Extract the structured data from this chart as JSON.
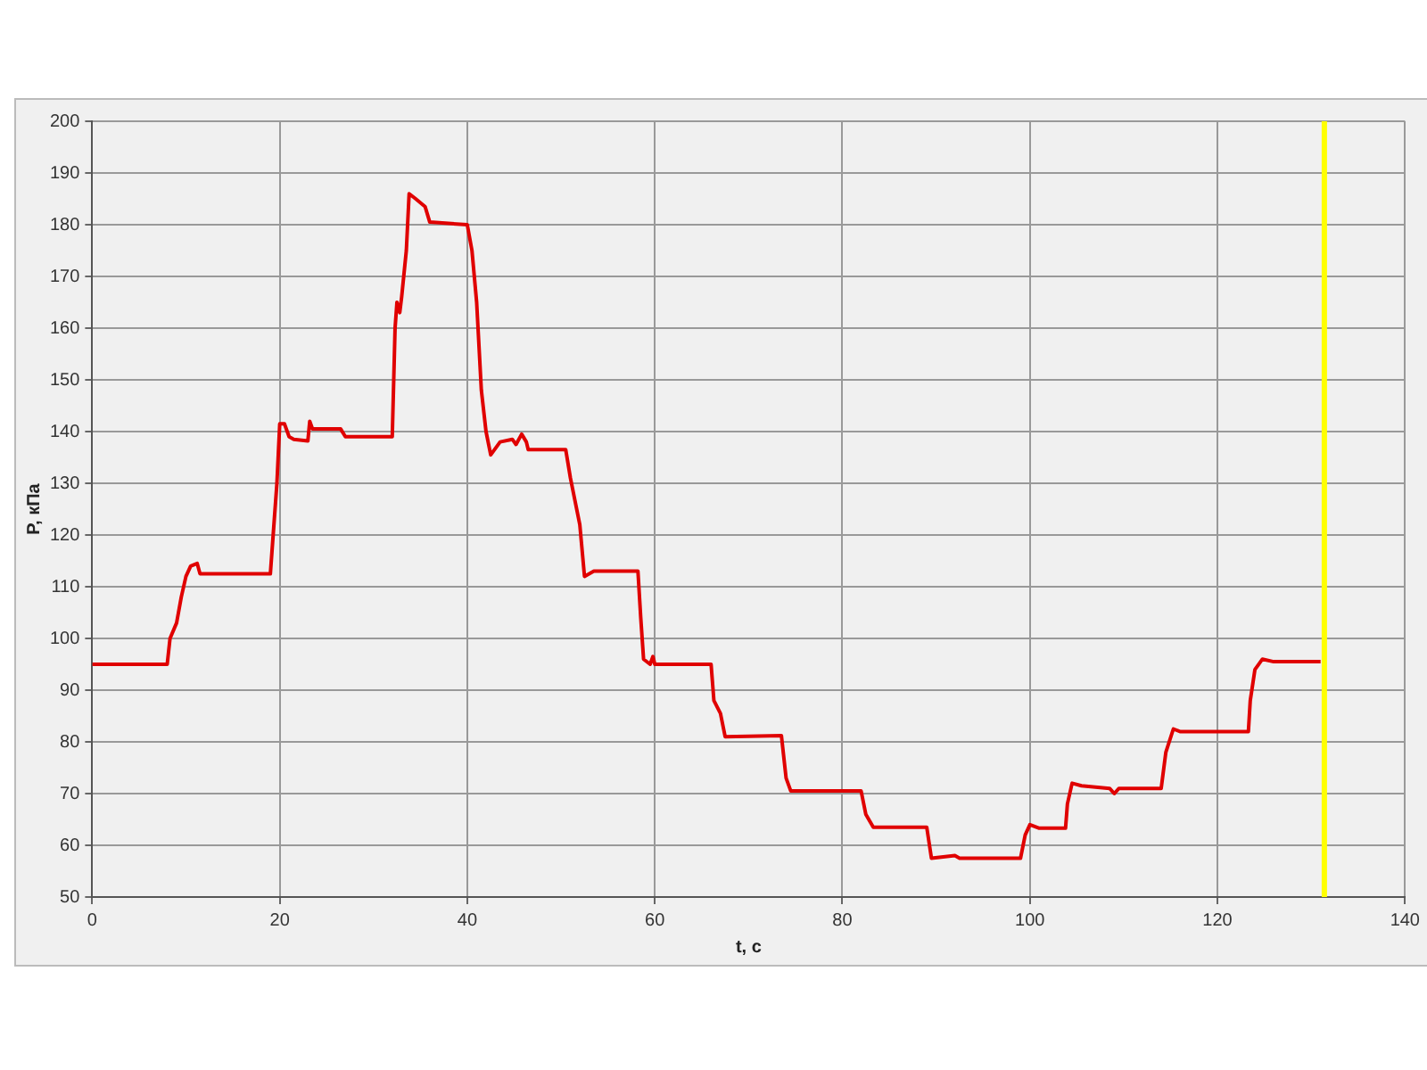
{
  "chart_data": {
    "type": "line",
    "xlabel": "t, с",
    "ylabel": "P, кПа",
    "x": [
      0,
      8,
      8.3,
      9,
      9.5,
      10,
      10.5,
      11.2,
      11.5,
      19,
      19.3,
      19.7,
      20,
      20.5,
      21,
      21.5,
      23,
      23.2,
      23.5,
      26.5,
      27,
      32,
      32.3,
      32.5,
      32.8,
      33,
      33.5,
      33.8,
      34.5,
      35.5,
      36,
      40,
      40.5,
      41,
      41.5,
      42,
      42.5,
      43.5,
      44.8,
      45.2,
      45.8,
      46.3,
      46.5,
      50.5,
      51,
      52,
      52.5,
      53.5,
      58.2,
      58.5,
      58.8,
      59.5,
      59.8,
      60,
      66,
      66.3,
      67,
      67.5,
      73.5,
      74,
      74.5,
      82,
      82.5,
      83.3,
      89,
      89.5,
      92,
      92.5,
      99,
      99.5,
      100,
      101,
      103.8,
      104,
      104.5,
      105.5,
      108.5,
      109,
      109.5,
      114,
      114.5,
      115.3,
      116,
      123.3,
      123.5,
      124,
      124.8,
      126,
      131
    ],
    "series": [
      {
        "color": "#e00000",
        "values": [
          95,
          95,
          100,
          103,
          108,
          112,
          114,
          114.5,
          112.5,
          112.5,
          120,
          130,
          141.5,
          141.5,
          139,
          138.5,
          138.2,
          142,
          140.5,
          140.5,
          139,
          139,
          160,
          165,
          163,
          166,
          175,
          186,
          185,
          183.5,
          180.5,
          180,
          175,
          165,
          148,
          140,
          135.5,
          138,
          138.5,
          137.5,
          139.5,
          138,
          136.5,
          136.5,
          131,
          122,
          112,
          113,
          113,
          104,
          96,
          95,
          96.5,
          95,
          95,
          88,
          85.5,
          81,
          81.2,
          73,
          70.5,
          70.5,
          66,
          63.5,
          63.5,
          57.5,
          58,
          57.5,
          57.5,
          62,
          64,
          63.3,
          63.3,
          68,
          72,
          71.5,
          71,
          70,
          71,
          71,
          78,
          82.5,
          82,
          82,
          88,
          94,
          96,
          95.5,
          95.5
        ]
      }
    ],
    "xlim": [
      0,
      140
    ],
    "xticks": [
      0,
      20,
      40,
      60,
      80,
      100,
      120,
      140
    ],
    "ylim": [
      50,
      200
    ],
    "yticks": [
      50,
      60,
      70,
      80,
      90,
      100,
      110,
      120,
      130,
      140,
      150,
      160,
      170,
      180,
      190,
      200
    ],
    "grid": true,
    "legend": false,
    "marker": "none",
    "line_style": "solid",
    "ref_lines": [
      {
        "axis": "x",
        "value": 131.4,
        "color": "#ffff00"
      }
    ]
  }
}
